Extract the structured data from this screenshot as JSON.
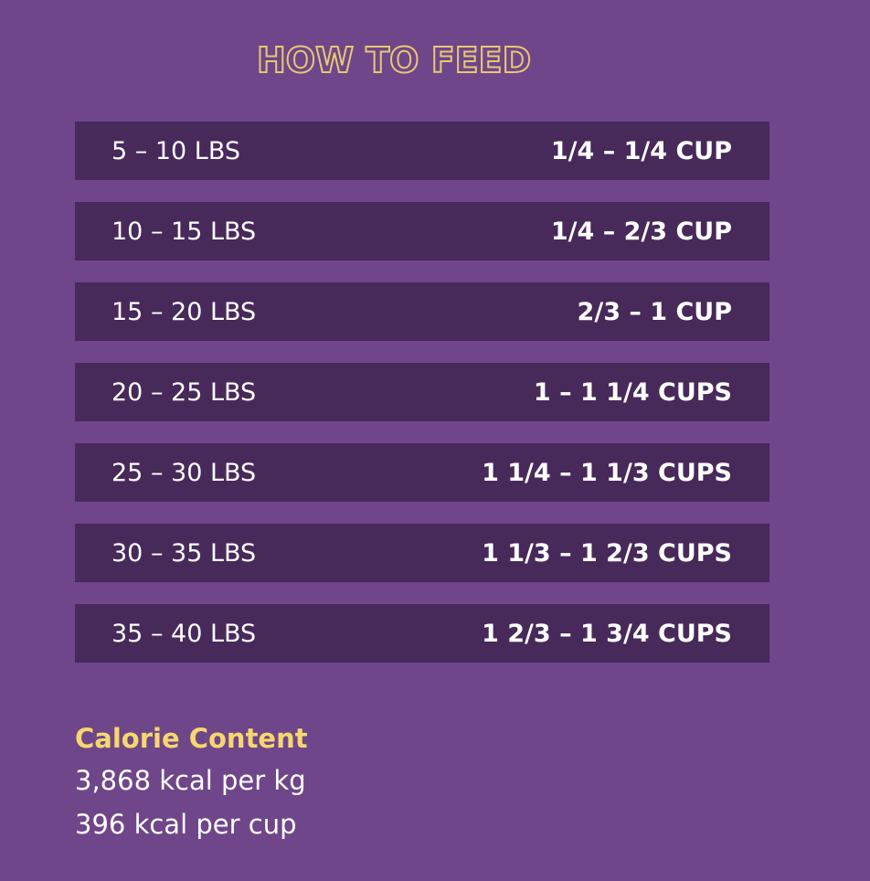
{
  "title": "HOW TO FEED",
  "colors": {
    "background": "#6f4689",
    "row_background": "#47295a",
    "title_color": "#e7c873",
    "heading_accent": "#f6d76f",
    "text": "#ffffff"
  },
  "feeding_rows": [
    {
      "weight": "5 – 10 LBS",
      "amount": "1/4 – 1/4 CUP"
    },
    {
      "weight": "10 – 15 LBS",
      "amount": "1/4 – 2/3 CUP"
    },
    {
      "weight": "15 – 20 LBS",
      "amount": "2/3 – 1 CUP"
    },
    {
      "weight": "20 – 25 LBS",
      "amount": "1 – 1 1/4 CUPS"
    },
    {
      "weight": "25 – 30 LBS",
      "amount": "1 1/4 – 1 1/3 CUPS"
    },
    {
      "weight": "30 – 35 LBS",
      "amount": "1 1/3 – 1 2/3 CUPS"
    },
    {
      "weight": "35 – 40 LBS",
      "amount": "1 2/3 – 1 3/4 CUPS"
    }
  ],
  "calorie": {
    "heading": "Calorie Content",
    "per_kg": "3,868 kcal per kg",
    "per_cup": "396 kcal per cup"
  }
}
